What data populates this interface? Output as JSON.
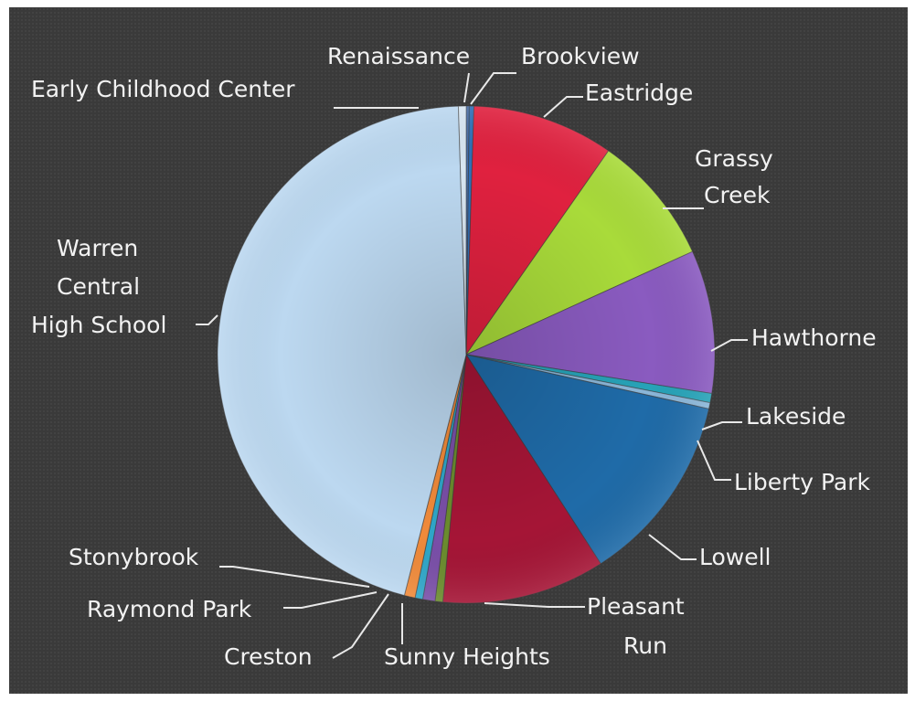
{
  "chart_data": {
    "type": "pie",
    "title": "",
    "slices": [
      {
        "label": "Renaissance",
        "value": 0.2,
        "color": "#4a6fa8"
      },
      {
        "label": "Brookview",
        "value": 0.3,
        "color": "#2f6fb8"
      },
      {
        "label": "Eastridge",
        "value": 9.2,
        "color": "#e0213f"
      },
      {
        "label": "Grassy Creek",
        "value": 8.5,
        "color": "#a9db3a"
      },
      {
        "label": "Hawthorne",
        "value": 9.3,
        "color": "#8a5bc0"
      },
      {
        "label": "Lakeside",
        "value": 0.6,
        "color": "#27a3b8"
      },
      {
        "label": "Liberty Park",
        "value": 0.4,
        "color": "#8ab6d8"
      },
      {
        "label": "Lowell",
        "value": 12.4,
        "color": "#1f6ba8"
      },
      {
        "label": "Pleasant Run",
        "value": 10.6,
        "color": "#a51536"
      },
      {
        "label": "Sunny Heights",
        "value": 0.5,
        "color": "#6b8c2e"
      },
      {
        "label": "Creston",
        "value": 0.8,
        "color": "#7a4fa8"
      },
      {
        "label": "Raymond Park",
        "value": 0.5,
        "color": "#2fa6c8"
      },
      {
        "label": "Stonybrook",
        "value": 0.7,
        "color": "#f08a3a"
      },
      {
        "label": "Warren Central High School",
        "value": 45.5,
        "color": "#bcd8f0"
      },
      {
        "label": "Early Childhood Center",
        "value": 0.5,
        "color": "#d8e6f2"
      }
    ],
    "legend": "none"
  },
  "labels": {
    "renaissance": "Renaissance",
    "brookview": "Brookview",
    "eastridge": "Eastridge",
    "grassy_1": "Grassy",
    "grassy_2": "Creek",
    "hawthorne": "Hawthorne",
    "lakeside": "Lakeside",
    "liberty": "Liberty Park",
    "lowell": "Lowell",
    "pleasant_1": "Pleasant",
    "pleasant_2": "Run",
    "sunny": "Sunny Heights",
    "creston": "Creston",
    "raymond": "Raymond Park",
    "stony": "Stonybrook",
    "warren_1": "Warren",
    "warren_2": "Central",
    "warren_3": "High School",
    "early": "Early Childhood Center"
  }
}
